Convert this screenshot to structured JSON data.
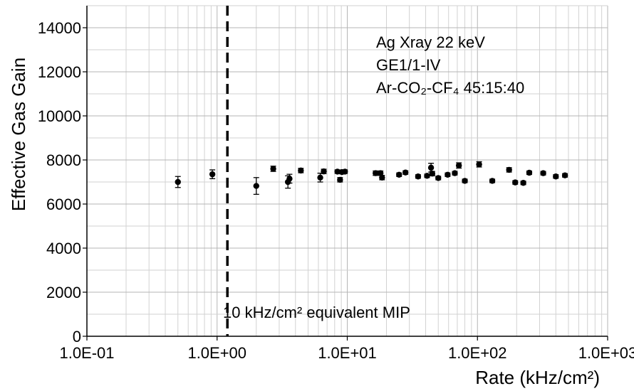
{
  "chart_data": {
    "type": "scatter",
    "title": "",
    "xlabel": "Rate (kHz/cm²)",
    "ylabel": "Effective Gas Gain",
    "x_scale": "log",
    "xlim": [
      0.1,
      1000
    ],
    "ylim": [
      0,
      15000
    ],
    "x_ticks": [
      0.1,
      1,
      10,
      100,
      1000
    ],
    "x_tick_labels": [
      "1.0E-01",
      "1.0E+00",
      "1.0E+01",
      "1.0E+02",
      "1.0E+03"
    ],
    "y_ticks": [
      0,
      2000,
      4000,
      6000,
      8000,
      10000,
      12000,
      14000
    ],
    "y_tick_labels": [
      "0",
      "2000",
      "4000",
      "6000",
      "8000",
      "10000",
      "12000",
      "14000"
    ],
    "grid": true,
    "annotations": [
      "Ag Xray 22 keV",
      "GE1/1-IV",
      "Ar-CO₂-CF₄ 45:15:40"
    ],
    "reference_line": {
      "x": 1.2,
      "label": "10 kHz/cm² equivalent MIP",
      "style": "dashed"
    },
    "series": [
      {
        "points": [
          {
            "x": 0.5,
            "y": 7000,
            "err": 250
          },
          {
            "x": 0.92,
            "y": 7350,
            "err": 200
          },
          {
            "x": 2.0,
            "y": 6820,
            "err": 380
          },
          {
            "x": 2.7,
            "y": 7600,
            "err": 120
          },
          {
            "x": 3.5,
            "y": 7000,
            "err": 280
          },
          {
            "x": 3.6,
            "y": 7150,
            "err": 200
          },
          {
            "x": 4.4,
            "y": 7520,
            "err": 100
          },
          {
            "x": 6.2,
            "y": 7200,
            "err": 200
          },
          {
            "x": 6.6,
            "y": 7480,
            "err": 100
          },
          {
            "x": 8.4,
            "y": 7470,
            "err": 80
          },
          {
            "x": 8.8,
            "y": 7100,
            "err": 100
          },
          {
            "x": 9.1,
            "y": 7450,
            "err": 80
          },
          {
            "x": 9.6,
            "y": 7470,
            "err": 80
          },
          {
            "x": 16.5,
            "y": 7400,
            "err": 100
          },
          {
            "x": 18.0,
            "y": 7400,
            "err": 100
          },
          {
            "x": 18.5,
            "y": 7200,
            "err": 100
          },
          {
            "x": 25.0,
            "y": 7330,
            "err": 80
          },
          {
            "x": 28.0,
            "y": 7430,
            "err": 80
          },
          {
            "x": 35.0,
            "y": 7250,
            "err": 80
          },
          {
            "x": 41.0,
            "y": 7280,
            "err": 80
          },
          {
            "x": 44.0,
            "y": 7650,
            "err": 200
          },
          {
            "x": 45.0,
            "y": 7380,
            "err": 100
          },
          {
            "x": 50.0,
            "y": 7180,
            "err": 80
          },
          {
            "x": 59.0,
            "y": 7330,
            "err": 80
          },
          {
            "x": 67.0,
            "y": 7400,
            "err": 80
          },
          {
            "x": 72.0,
            "y": 7750,
            "err": 120
          },
          {
            "x": 80.0,
            "y": 7050,
            "err": 80
          },
          {
            "x": 103.0,
            "y": 7800,
            "err": 120
          },
          {
            "x": 130.0,
            "y": 7050,
            "err": 80
          },
          {
            "x": 175.0,
            "y": 7550,
            "err": 100
          },
          {
            "x": 195.0,
            "y": 6980,
            "err": 80
          },
          {
            "x": 225.0,
            "y": 6960,
            "err": 80
          },
          {
            "x": 250.0,
            "y": 7420,
            "err": 80
          },
          {
            "x": 320.0,
            "y": 7400,
            "err": 80
          },
          {
            "x": 400.0,
            "y": 7250,
            "err": 80
          },
          {
            "x": 470.0,
            "y": 7300,
            "err": 80
          }
        ]
      }
    ]
  }
}
